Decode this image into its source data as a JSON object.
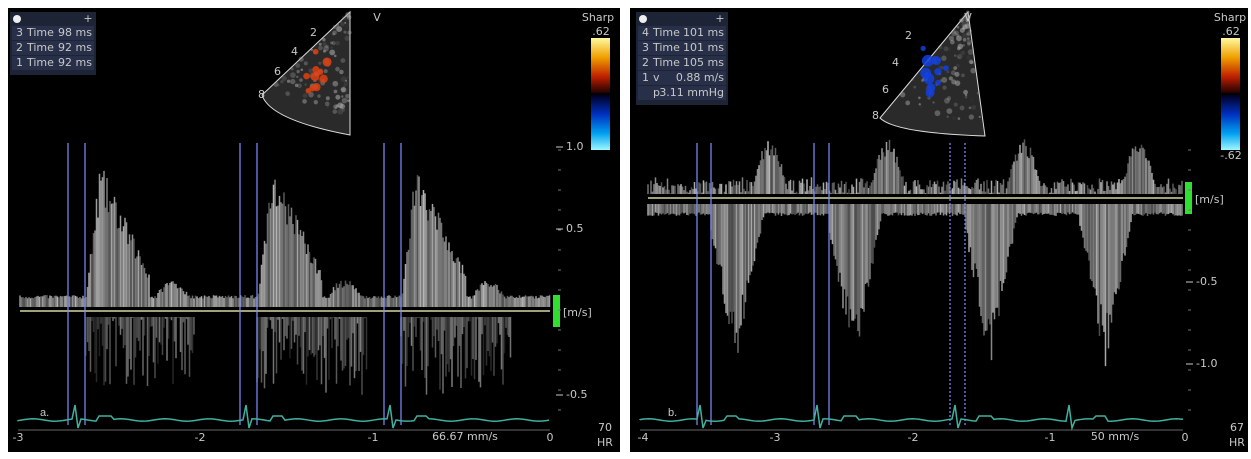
{
  "panels": [
    {
      "label": "a.",
      "measurements": [
        {
          "index": "3",
          "name": "Time",
          "value": "98 ms"
        },
        {
          "index": "2",
          "name": "Time",
          "value": "92 ms"
        },
        {
          "index": "1",
          "name": "Time",
          "value": "92 ms"
        }
      ],
      "mode": "V",
      "filter": "Sharp",
      "color_scale": {
        "top": ".62"
      },
      "velocity_scale": {
        "ticks": [
          "1.0",
          "0.5",
          "-0.5"
        ],
        "unit": "[m/s]"
      },
      "time_axis": [
        "-3",
        "-2",
        "-1",
        "0"
      ],
      "sweep_speed": "66.67 mm/s",
      "heart_rate": "70",
      "heart_rate_unit": "HR",
      "depth_markers": [
        "8",
        "6",
        "4",
        "2"
      ]
    },
    {
      "label": "b.",
      "measurements": [
        {
          "index": "4",
          "name": "Time",
          "value": "101 ms"
        },
        {
          "index": "3",
          "name": "Time",
          "value": "101 ms"
        },
        {
          "index": "2",
          "name": "Time",
          "value": "105 ms"
        },
        {
          "index": "1",
          "name": "v",
          "value": "0.88 m/s"
        },
        {
          "name": "p",
          "value": "3.11 mmHg"
        }
      ],
      "mode": "V",
      "filter": "Sharp",
      "color_scale": {
        "top": ".62",
        "bottom": "-.62"
      },
      "velocity_scale": {
        "ticks": [
          "-0.5",
          "-1.0"
        ],
        "unit": "[m/s]"
      },
      "time_axis": [
        "-4",
        "-3",
        "-2",
        "-1",
        "0"
      ],
      "sweep_speed": "50 mm/s",
      "heart_rate": "67",
      "heart_rate_unit": "HR",
      "depth_markers": [
        "8",
        "6",
        "4",
        "2"
      ]
    }
  ]
}
